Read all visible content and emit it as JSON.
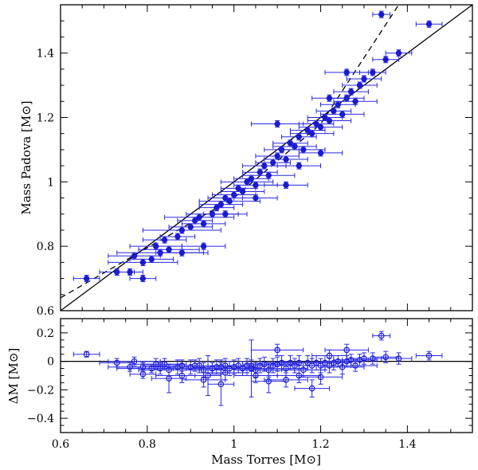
{
  "colors": {
    "points": "#1a1ad0",
    "errorbars": "#2828e6",
    "axes": "#000000",
    "background": "#ffffff"
  },
  "chart_data": [
    {
      "type": "scatter",
      "panel": "top",
      "ylabel": "Mass Padova [M⊙]",
      "xlim": [
        0.6,
        1.55
      ],
      "ylim": [
        0.6,
        1.55
      ],
      "xticks": [
        0.6,
        0.8,
        1,
        1.2,
        1.4
      ],
      "yticks": [
        0.6,
        0.8,
        1,
        1.2,
        1.4
      ],
      "xtick_labels": [
        "0.6",
        "0.8",
        "1",
        "1.2",
        "1.4"
      ],
      "ytick_labels": [
        "0.6",
        "0.8",
        "1",
        "1.2",
        "1.4"
      ],
      "lines": [
        {
          "name": "one-to-one",
          "style": "solid",
          "x": [
            0.6,
            1.55
          ],
          "y": [
            0.6,
            1.55
          ]
        },
        {
          "name": "fit",
          "style": "dashed",
          "x": [
            0.6,
            1.0,
            1.2,
            1.38
          ],
          "y": [
            0.64,
            0.95,
            1.18,
            1.55
          ]
        }
      ],
      "points": [
        [
          0.66,
          0.7,
          0.03
        ],
        [
          0.73,
          0.72,
          0.04
        ],
        [
          0.76,
          0.72,
          0.03
        ],
        [
          0.79,
          0.7,
          0.03
        ],
        [
          0.77,
          0.77,
          0.06
        ],
        [
          0.79,
          0.75,
          0.08
        ],
        [
          0.81,
          0.76,
          0.05
        ],
        [
          0.83,
          0.78,
          0.1
        ],
        [
          0.82,
          0.8,
          0.06
        ],
        [
          0.85,
          0.79,
          0.07
        ],
        [
          0.84,
          0.82,
          0.05
        ],
        [
          0.87,
          0.83,
          0.04
        ],
        [
          0.88,
          0.85,
          0.09
        ],
        [
          0.9,
          0.86,
          0.05
        ],
        [
          0.91,
          0.88,
          0.04
        ],
        [
          0.92,
          0.89,
          0.08
        ],
        [
          0.93,
          0.87,
          0.05
        ],
        [
          0.95,
          0.9,
          0.06
        ],
        [
          0.96,
          0.92,
          0.04
        ],
        [
          0.97,
          0.93,
          0.05
        ],
        [
          0.98,
          0.95,
          0.04
        ],
        [
          0.99,
          0.94,
          0.07
        ],
        [
          1.0,
          0.96,
          0.05
        ],
        [
          1.01,
          0.98,
          0.04
        ],
        [
          1.02,
          0.97,
          0.05
        ],
        [
          1.03,
          1.0,
          0.06
        ],
        [
          1.04,
          1.01,
          0.04
        ],
        [
          1.05,
          0.99,
          0.05
        ],
        [
          1.06,
          1.03,
          0.04
        ],
        [
          1.07,
          1.05,
          0.05
        ],
        [
          1.08,
          1.02,
          0.06
        ],
        [
          1.09,
          1.06,
          0.04
        ],
        [
          1.1,
          1.08,
          0.05
        ],
        [
          1.11,
          1.1,
          0.04
        ],
        [
          1.12,
          1.07,
          0.05
        ],
        [
          1.13,
          1.12,
          0.04
        ],
        [
          1.14,
          1.11,
          0.05
        ],
        [
          1.15,
          1.14,
          0.04
        ],
        [
          1.16,
          1.1,
          0.05
        ],
        [
          1.17,
          1.16,
          0.04
        ],
        [
          1.18,
          1.15,
          0.05
        ],
        [
          1.19,
          1.18,
          0.04
        ],
        [
          1.2,
          1.17,
          0.05
        ],
        [
          1.21,
          1.2,
          0.04
        ],
        [
          1.22,
          1.19,
          0.05
        ],
        [
          1.23,
          1.22,
          0.04
        ],
        [
          1.24,
          1.24,
          0.04
        ],
        [
          1.25,
          1.21,
          0.05
        ],
        [
          1.26,
          1.26,
          0.04
        ],
        [
          1.27,
          1.28,
          0.04
        ],
        [
          1.28,
          1.25,
          0.05
        ],
        [
          1.29,
          1.3,
          0.04
        ],
        [
          1.3,
          1.32,
          0.04
        ],
        [
          1.32,
          1.34,
          0.03
        ],
        [
          1.35,
          1.38,
          0.03
        ],
        [
          1.38,
          1.4,
          0.03
        ],
        [
          1.34,
          1.52,
          0.02
        ],
        [
          1.45,
          1.49,
          0.03
        ],
        [
          1.1,
          1.18,
          0.06
        ],
        [
          0.93,
          0.8,
          0.05
        ],
        [
          0.88,
          0.78,
          0.06
        ],
        [
          1.05,
          0.95,
          0.05
        ],
        [
          1.12,
          0.99,
          0.05
        ],
        [
          1.2,
          1.09,
          0.05
        ],
        [
          1.26,
          1.34,
          0.05
        ],
        [
          1.22,
          1.26,
          0.04
        ],
        [
          1.15,
          1.05,
          0.05
        ],
        [
          0.98,
          0.9,
          0.05
        ]
      ],
      "points_format": "[mass_torres, mass_padova, x_error]"
    },
    {
      "type": "scatter",
      "panel": "bottom",
      "xlabel": "Mass Torres [M⊙]",
      "ylabel": "ΔM [M⊙]",
      "xlim": [
        0.6,
        1.55
      ],
      "ylim": [
        -0.5,
        0.3
      ],
      "xticks": [
        0.6,
        0.8,
        1,
        1.2,
        1.4
      ],
      "yticks": [
        -0.4,
        -0.2,
        0,
        0.2
      ],
      "xtick_labels": [
        "0.6",
        "0.8",
        "1",
        "1.2",
        "1.4"
      ],
      "ytick_labels": [
        "−0.4",
        "−0.2",
        "0",
        "0.2"
      ],
      "reference_line": 0,
      "points": [
        [
          0.66,
          0.05,
          0.03,
          0.02
        ],
        [
          0.73,
          -0.01,
          0.04,
          0.03
        ],
        [
          0.76,
          -0.04,
          0.03,
          0.03
        ],
        [
          0.79,
          -0.09,
          0.03,
          0.03
        ],
        [
          0.77,
          0.0,
          0.06,
          0.03
        ],
        [
          0.79,
          -0.04,
          0.08,
          0.03
        ],
        [
          0.81,
          -0.05,
          0.05,
          0.03
        ],
        [
          0.83,
          -0.05,
          0.1,
          0.04
        ],
        [
          0.82,
          -0.02,
          0.06,
          0.04
        ],
        [
          0.85,
          -0.06,
          0.07,
          0.04
        ],
        [
          0.84,
          -0.02,
          0.05,
          0.04
        ],
        [
          0.87,
          -0.04,
          0.04,
          0.05
        ],
        [
          0.88,
          -0.03,
          0.09,
          0.04
        ],
        [
          0.9,
          -0.04,
          0.05,
          0.05
        ],
        [
          0.91,
          -0.03,
          0.04,
          0.04
        ],
        [
          0.92,
          -0.03,
          0.08,
          0.05
        ],
        [
          0.93,
          -0.06,
          0.05,
          0.05
        ],
        [
          0.95,
          -0.05,
          0.06,
          0.04
        ],
        [
          0.96,
          -0.04,
          0.04,
          0.05
        ],
        [
          0.97,
          -0.04,
          0.05,
          0.05
        ],
        [
          0.98,
          -0.03,
          0.04,
          0.05
        ],
        [
          0.99,
          -0.05,
          0.07,
          0.05
        ],
        [
          1.0,
          -0.04,
          0.05,
          0.05
        ],
        [
          1.01,
          -0.03,
          0.04,
          0.05
        ],
        [
          1.02,
          -0.05,
          0.05,
          0.05
        ],
        [
          1.03,
          -0.03,
          0.06,
          0.05
        ],
        [
          1.04,
          -0.03,
          0.04,
          0.04
        ],
        [
          1.05,
          -0.06,
          0.05,
          0.05
        ],
        [
          1.06,
          -0.03,
          0.04,
          0.05
        ],
        [
          1.07,
          -0.02,
          0.05,
          0.05
        ],
        [
          1.08,
          -0.06,
          0.06,
          0.05
        ],
        [
          1.09,
          -0.03,
          0.04,
          0.05
        ],
        [
          1.1,
          -0.02,
          0.05,
          0.05
        ],
        [
          1.11,
          -0.01,
          0.04,
          0.05
        ],
        [
          1.12,
          -0.05,
          0.05,
          0.05
        ],
        [
          1.13,
          -0.01,
          0.04,
          0.05
        ],
        [
          1.14,
          -0.03,
          0.05,
          0.05
        ],
        [
          1.15,
          -0.01,
          0.04,
          0.05
        ],
        [
          1.16,
          -0.06,
          0.05,
          0.05
        ],
        [
          1.17,
          -0.01,
          0.04,
          0.05
        ],
        [
          1.18,
          -0.03,
          0.05,
          0.05
        ],
        [
          1.19,
          -0.01,
          0.04,
          0.05
        ],
        [
          1.2,
          -0.03,
          0.05,
          0.05
        ],
        [
          1.21,
          -0.01,
          0.04,
          0.05
        ],
        [
          1.22,
          -0.03,
          0.05,
          0.05
        ],
        [
          1.23,
          -0.01,
          0.04,
          0.05
        ],
        [
          1.24,
          0.0,
          0.04,
          0.04
        ],
        [
          1.25,
          -0.04,
          0.05,
          0.05
        ],
        [
          1.26,
          0.0,
          0.04,
          0.04
        ],
        [
          1.27,
          0.01,
          0.04,
          0.04
        ],
        [
          1.28,
          -0.03,
          0.05,
          0.04
        ],
        [
          1.29,
          0.01,
          0.04,
          0.04
        ],
        [
          1.3,
          0.02,
          0.04,
          0.04
        ],
        [
          1.32,
          0.02,
          0.03,
          0.04
        ],
        [
          1.35,
          0.03,
          0.03,
          0.04
        ],
        [
          1.38,
          0.02,
          0.03,
          0.04
        ],
        [
          1.34,
          0.18,
          0.02,
          0.03
        ],
        [
          1.45,
          0.04,
          0.03,
          0.03
        ],
        [
          1.1,
          0.08,
          0.06,
          0.04
        ],
        [
          0.93,
          -0.13,
          0.05,
          0.05
        ],
        [
          0.88,
          -0.1,
          0.06,
          0.05
        ],
        [
          1.05,
          -0.1,
          0.05,
          0.05
        ],
        [
          1.12,
          -0.13,
          0.05,
          0.05
        ],
        [
          1.2,
          -0.11,
          0.05,
          0.05
        ],
        [
          1.26,
          0.08,
          0.05,
          0.04
        ],
        [
          1.22,
          0.04,
          0.04,
          0.04
        ],
        [
          1.15,
          -0.1,
          0.05,
          0.05
        ],
        [
          0.98,
          -0.08,
          0.05,
          0.05
        ],
        [
          0.97,
          -0.16,
          0.03,
          0.15
        ],
        [
          1.04,
          -0.05,
          0.03,
          0.2
        ],
        [
          0.94,
          -0.1,
          0.03,
          0.14
        ],
        [
          0.85,
          -0.12,
          0.04,
          0.1
        ],
        [
          1.18,
          -0.19,
          0.04,
          0.06
        ],
        [
          1.08,
          -0.14,
          0.04,
          0.08
        ]
      ],
      "points_format": "[mass_torres, delta_mass, x_error, y_error]"
    }
  ]
}
